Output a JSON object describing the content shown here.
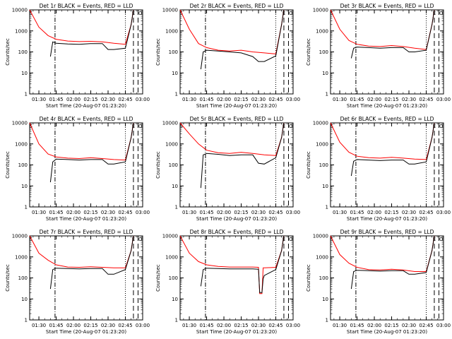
{
  "chart_data": [
    {
      "type": "line",
      "title": "Det 1r BLACK = Events, RED = LLD",
      "ylabel": "Counts/sec",
      "xlabel": "Start Time (20-Aug-07 01:23:20)",
      "xlim": [
        "01:22",
        "03:00"
      ],
      "ylim": [
        1,
        10000
      ],
      "yscale": "log",
      "xticks": [
        "01:30",
        "01:45",
        "02:00",
        "02:15",
        "02:30",
        "02:45",
        "03:00"
      ],
      "yticks": [
        "1",
        "10",
        "100",
        "1000",
        "10000"
      ],
      "marker_labels": [
        "S",
        "E",
        "O"
      ],
      "series": [
        {
          "color": "#ff0000",
          "x": [
            "01:22",
            "01:30",
            "01:38",
            "01:45",
            "01:55",
            "02:05",
            "02:15",
            "02:25",
            "02:35",
            "02:45",
            "02:50",
            "02:52"
          ],
          "values": [
            10000,
            1500,
            600,
            400,
            330,
            310,
            320,
            300,
            260,
            230,
            2000,
            10000
          ]
        },
        {
          "color": "#000000",
          "x": [
            "01:40",
            "01:42",
            "01:45",
            "01:55",
            "02:05",
            "02:15",
            "02:25",
            "02:30",
            "02:35",
            "02:45",
            "02:50",
            "02:52"
          ],
          "values": [
            60,
            300,
            260,
            240,
            230,
            250,
            250,
            130,
            130,
            150,
            2000,
            10000
          ]
        }
      ]
    },
    {
      "type": "line",
      "title": "Det 2r BLACK = Events, RED = LLD",
      "ylabel": "Counts/sec",
      "xlabel": "Start Time (20-Aug-07 01:23:20)",
      "xlim": [
        "01:22",
        "03:00"
      ],
      "ylim": [
        1,
        10000
      ],
      "yscale": "log",
      "xticks": [
        "01:30",
        "01:45",
        "02:00",
        "02:15",
        "02:30",
        "02:45",
        "03:00"
      ],
      "yticks": [
        "1",
        "10",
        "100",
        "1000",
        "10000"
      ],
      "marker_labels": [
        "S",
        "E",
        "O"
      ],
      "series": [
        {
          "color": "#ff0000",
          "x": [
            "01:22",
            "01:30",
            "01:38",
            "01:45",
            "01:55",
            "02:05",
            "02:15",
            "02:25",
            "02:35",
            "02:45",
            "02:50",
            "02:52"
          ],
          "values": [
            10000,
            1200,
            250,
            160,
            120,
            110,
            120,
            100,
            90,
            80,
            2000,
            10000
          ]
        },
        {
          "color": "#000000",
          "x": [
            "01:40",
            "01:42",
            "01:45",
            "01:55",
            "02:05",
            "02:15",
            "02:25",
            "02:30",
            "02:35",
            "02:45",
            "02:50",
            "02:52"
          ],
          "values": [
            15,
            100,
            120,
            110,
            100,
            90,
            60,
            35,
            35,
            65,
            2000,
            10000
          ]
        }
      ]
    },
    {
      "type": "line",
      "title": "Det 3r BLACK = Events, RED = LLD",
      "ylabel": "Counts/sec",
      "xlabel": "Start Time (20-Aug-07 01:23:20)",
      "xlim": [
        "01:22",
        "03:00"
      ],
      "ylim": [
        1,
        10000
      ],
      "yscale": "log",
      "xticks": [
        "01:30",
        "01:45",
        "02:00",
        "02:15",
        "02:30",
        "02:45",
        "03:00"
      ],
      "yticks": [
        "1",
        "10",
        "100",
        "1000",
        "10000"
      ],
      "marker_labels": [
        "S",
        "E",
        "O"
      ],
      "series": [
        {
          "color": "#ff0000",
          "x": [
            "01:22",
            "01:30",
            "01:38",
            "01:45",
            "01:55",
            "02:05",
            "02:15",
            "02:25",
            "02:35",
            "02:45",
            "02:50",
            "02:52"
          ],
          "values": [
            10000,
            1200,
            350,
            230,
            190,
            180,
            200,
            180,
            150,
            130,
            2000,
            10000
          ]
        },
        {
          "color": "#000000",
          "x": [
            "01:40",
            "01:42",
            "01:45",
            "01:55",
            "02:05",
            "02:15",
            "02:25",
            "02:30",
            "02:35",
            "02:45",
            "02:50",
            "02:52"
          ],
          "values": [
            50,
            150,
            170,
            160,
            150,
            160,
            160,
            100,
            100,
            120,
            2000,
            10000
          ]
        }
      ]
    },
    {
      "type": "line",
      "title": "Det 4r BLACK = Events, RED = LLD",
      "ylabel": "Counts/sec",
      "xlabel": "Start Time (20-Aug-07 01:23:20)",
      "xlim": [
        "01:22",
        "03:00"
      ],
      "ylim": [
        1,
        10000
      ],
      "yscale": "log",
      "xticks": [
        "01:30",
        "01:45",
        "02:00",
        "02:15",
        "02:30",
        "02:45",
        "03:00"
      ],
      "yticks": [
        "1",
        "10",
        "100",
        "1000",
        "10000"
      ],
      "marker_labels": [
        "S",
        "E",
        "O"
      ],
      "series": [
        {
          "color": "#ff0000",
          "x": [
            "01:22",
            "01:30",
            "01:38",
            "01:45",
            "01:55",
            "02:05",
            "02:15",
            "02:25",
            "02:35",
            "02:45",
            "02:50",
            "02:52"
          ],
          "values": [
            10000,
            1000,
            330,
            240,
            210,
            200,
            220,
            200,
            180,
            170,
            2000,
            10000
          ]
        },
        {
          "color": "#000000",
          "x": [
            "01:40",
            "01:42",
            "01:45",
            "01:55",
            "02:05",
            "02:15",
            "02:25",
            "02:30",
            "02:35",
            "02:45",
            "02:50",
            "02:52"
          ],
          "values": [
            15,
            140,
            190,
            180,
            170,
            180,
            180,
            110,
            110,
            140,
            2000,
            10000
          ]
        }
      ]
    },
    {
      "type": "line",
      "title": "Det 5r BLACK = Events, RED = LLD",
      "ylabel": "Counts/sec",
      "xlabel": "Start Time (20-Aug-07 01:23:20)",
      "xlim": [
        "01:22",
        "03:00"
      ],
      "ylim": [
        1,
        10000
      ],
      "yscale": "log",
      "xticks": [
        "01:30",
        "01:45",
        "02:00",
        "02:15",
        "02:30",
        "02:45",
        "03:00"
      ],
      "yticks": [
        "1",
        "10",
        "100",
        "1000",
        "10000"
      ],
      "marker_labels": [
        "S",
        "E",
        "O"
      ],
      "series": [
        {
          "color": "#ff0000",
          "x": [
            "01:22",
            "01:30",
            "01:38",
            "01:45",
            "01:55",
            "02:05",
            "02:15",
            "02:25",
            "02:35",
            "02:45",
            "02:50",
            "02:52"
          ],
          "values": [
            10000,
            3000,
            1000,
            500,
            380,
            350,
            400,
            350,
            300,
            280,
            2000,
            10000
          ]
        },
        {
          "color": "#000000",
          "x": [
            "01:40",
            "01:42",
            "01:45",
            "01:55",
            "02:05",
            "02:15",
            "02:25",
            "02:30",
            "02:35",
            "02:45",
            "02:50",
            "02:52"
          ],
          "values": [
            8,
            300,
            350,
            320,
            280,
            300,
            300,
            120,
            110,
            220,
            2000,
            10000
          ]
        }
      ]
    },
    {
      "type": "line",
      "title": "Det 6r BLACK = Events, RED = LLD",
      "ylabel": "Counts/sec",
      "xlabel": "Start Time (20-Aug-07 01:23:20)",
      "xlim": [
        "01:22",
        "03:00"
      ],
      "ylim": [
        1,
        10000
      ],
      "yscale": "log",
      "xticks": [
        "01:30",
        "01:45",
        "02:00",
        "02:15",
        "02:30",
        "02:45",
        "03:00"
      ],
      "yticks": [
        "1",
        "10",
        "100",
        "1000",
        "10000"
      ],
      "marker_labels": [
        "S",
        "E",
        "O"
      ],
      "series": [
        {
          "color": "#ff0000",
          "x": [
            "01:22",
            "01:30",
            "01:38",
            "01:45",
            "01:55",
            "02:05",
            "02:15",
            "02:25",
            "02:35",
            "02:45",
            "02:50",
            "02:52"
          ],
          "values": [
            10000,
            1200,
            400,
            260,
            220,
            210,
            230,
            210,
            190,
            180,
            2000,
            10000
          ]
        },
        {
          "color": "#000000",
          "x": [
            "01:40",
            "01:42",
            "01:45",
            "01:55",
            "02:05",
            "02:15",
            "02:25",
            "02:30",
            "02:35",
            "02:45",
            "02:50",
            "02:52"
          ],
          "values": [
            30,
            150,
            180,
            170,
            160,
            170,
            170,
            110,
            110,
            140,
            2000,
            10000
          ]
        }
      ]
    },
    {
      "type": "line",
      "title": "Det 7r BLACK = Events, RED = LLD",
      "ylabel": "Counts/sec",
      "xlabel": "Start Time (20-Aug-07 01:23:20)",
      "xlim": [
        "01:22",
        "03:00"
      ],
      "ylim": [
        1,
        10000
      ],
      "yscale": "log",
      "xticks": [
        "01:30",
        "01:45",
        "02:00",
        "02:15",
        "02:30",
        "02:45",
        "03:00"
      ],
      "yticks": [
        "1",
        "10",
        "100",
        "1000",
        "10000"
      ],
      "marker_labels": [
        "S",
        "E",
        "O"
      ],
      "series": [
        {
          "color": "#ff0000",
          "x": [
            "01:22",
            "01:30",
            "01:38",
            "01:45",
            "01:55",
            "02:05",
            "02:15",
            "02:25",
            "02:35",
            "02:45",
            "02:50",
            "02:52"
          ],
          "values": [
            10000,
            1500,
            700,
            420,
            330,
            320,
            340,
            320,
            300,
            300,
            2000,
            10000
          ]
        },
        {
          "color": "#000000",
          "x": [
            "01:40",
            "01:42",
            "01:45",
            "01:55",
            "02:05",
            "02:15",
            "02:25",
            "02:30",
            "02:35",
            "02:45",
            "02:50",
            "02:52"
          ],
          "values": [
            30,
            250,
            290,
            280,
            270,
            280,
            280,
            150,
            150,
            250,
            2000,
            10000
          ]
        }
      ]
    },
    {
      "type": "line",
      "title": "Det 8r BLACK = Events, RED = LLD",
      "ylabel": "Counts/sec",
      "xlabel": "Start Time (20-Aug-07 01:23:20)",
      "xlim": [
        "01:22",
        "03:00"
      ],
      "ylim": [
        1,
        10000
      ],
      "yscale": "log",
      "xticks": [
        "01:30",
        "01:45",
        "02:00",
        "02:15",
        "02:30",
        "02:45",
        "03:00"
      ],
      "yticks": [
        "1",
        "10",
        "100",
        "1000",
        "10000"
      ],
      "marker_labels": [
        "S",
        "E",
        "O"
      ],
      "series": [
        {
          "color": "#ff0000",
          "x": [
            "01:22",
            "01:30",
            "01:38",
            "01:45",
            "01:55",
            "02:05",
            "02:15",
            "02:25",
            "02:30",
            "02:31",
            "02:33",
            "02:34",
            "02:35",
            "02:45",
            "02:50",
            "02:52"
          ],
          "values": [
            10000,
            1500,
            600,
            420,
            350,
            330,
            330,
            330,
            320,
            18,
            18,
            300,
            300,
            320,
            2000,
            10000
          ]
        },
        {
          "color": "#000000",
          "x": [
            "01:40",
            "01:42",
            "01:45",
            "01:55",
            "02:05",
            "02:15",
            "02:25",
            "02:30",
            "02:31",
            "02:33",
            "02:34",
            "02:35",
            "02:45",
            "02:50",
            "02:52"
          ],
          "values": [
            40,
            250,
            290,
            280,
            270,
            270,
            270,
            260,
            20,
            20,
            90,
            130,
            250,
            2000,
            10000
          ]
        }
      ]
    },
    {
      "type": "line",
      "title": "Det 9r BLACK = Events, RED = LLD",
      "ylabel": "Counts/sec",
      "xlabel": "Start Time (20-Aug-07 01:23:20)",
      "xlim": [
        "01:22",
        "03:00"
      ],
      "ylim": [
        1,
        10000
      ],
      "yscale": "log",
      "xticks": [
        "01:30",
        "01:45",
        "02:00",
        "02:15",
        "02:30",
        "02:45",
        "03:00"
      ],
      "yticks": [
        "1",
        "10",
        "100",
        "1000",
        "10000"
      ],
      "marker_labels": [
        "S",
        "E",
        "O"
      ],
      "series": [
        {
          "color": "#ff0000",
          "x": [
            "01:22",
            "01:30",
            "01:38",
            "01:45",
            "01:55",
            "02:05",
            "02:15",
            "02:25",
            "02:35",
            "02:45",
            "02:50",
            "02:52"
          ],
          "values": [
            10000,
            1300,
            500,
            320,
            250,
            240,
            260,
            240,
            200,
            200,
            2000,
            10000
          ]
        },
        {
          "color": "#000000",
          "x": [
            "01:40",
            "01:42",
            "01:45",
            "01:55",
            "02:05",
            "02:15",
            "02:25",
            "02:30",
            "02:35",
            "02:45",
            "02:50",
            "02:52"
          ],
          "values": [
            30,
            200,
            230,
            220,
            210,
            220,
            220,
            150,
            150,
            180,
            2000,
            10000
          ]
        }
      ]
    }
  ]
}
